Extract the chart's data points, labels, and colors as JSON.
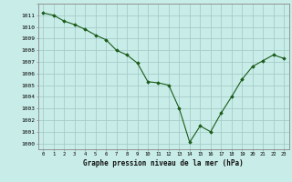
{
  "x": [
    0,
    1,
    2,
    3,
    4,
    5,
    6,
    7,
    8,
    9,
    10,
    11,
    12,
    13,
    14,
    15,
    16,
    17,
    18,
    19,
    20,
    21,
    22,
    23
  ],
  "y": [
    1011.2,
    1011.0,
    1010.5,
    1010.2,
    1009.8,
    1009.3,
    1008.9,
    1008.0,
    1007.6,
    1006.9,
    1005.3,
    1005.2,
    1005.0,
    1003.0,
    1000.1,
    1001.5,
    1001.0,
    1002.6,
    1004.0,
    1005.5,
    1006.6,
    1007.1,
    1007.6,
    1007.3
  ],
  "line_color": "#1a5c1a",
  "marker_color": "#1a5c1a",
  "bg_color": "#c8ece8",
  "grid_color": "#a0c8c4",
  "xlabel": "Graphe pression niveau de la mer (hPa)",
  "ylim": [
    999.5,
    1012.0
  ],
  "xlim": [
    -0.5,
    23.5
  ],
  "yticks": [
    1000,
    1001,
    1002,
    1003,
    1004,
    1005,
    1006,
    1007,
    1008,
    1009,
    1010,
    1011
  ],
  "xticks": [
    0,
    1,
    2,
    3,
    4,
    5,
    6,
    7,
    8,
    9,
    10,
    11,
    12,
    13,
    14,
    15,
    16,
    17,
    18,
    19,
    20,
    21,
    22,
    23
  ]
}
